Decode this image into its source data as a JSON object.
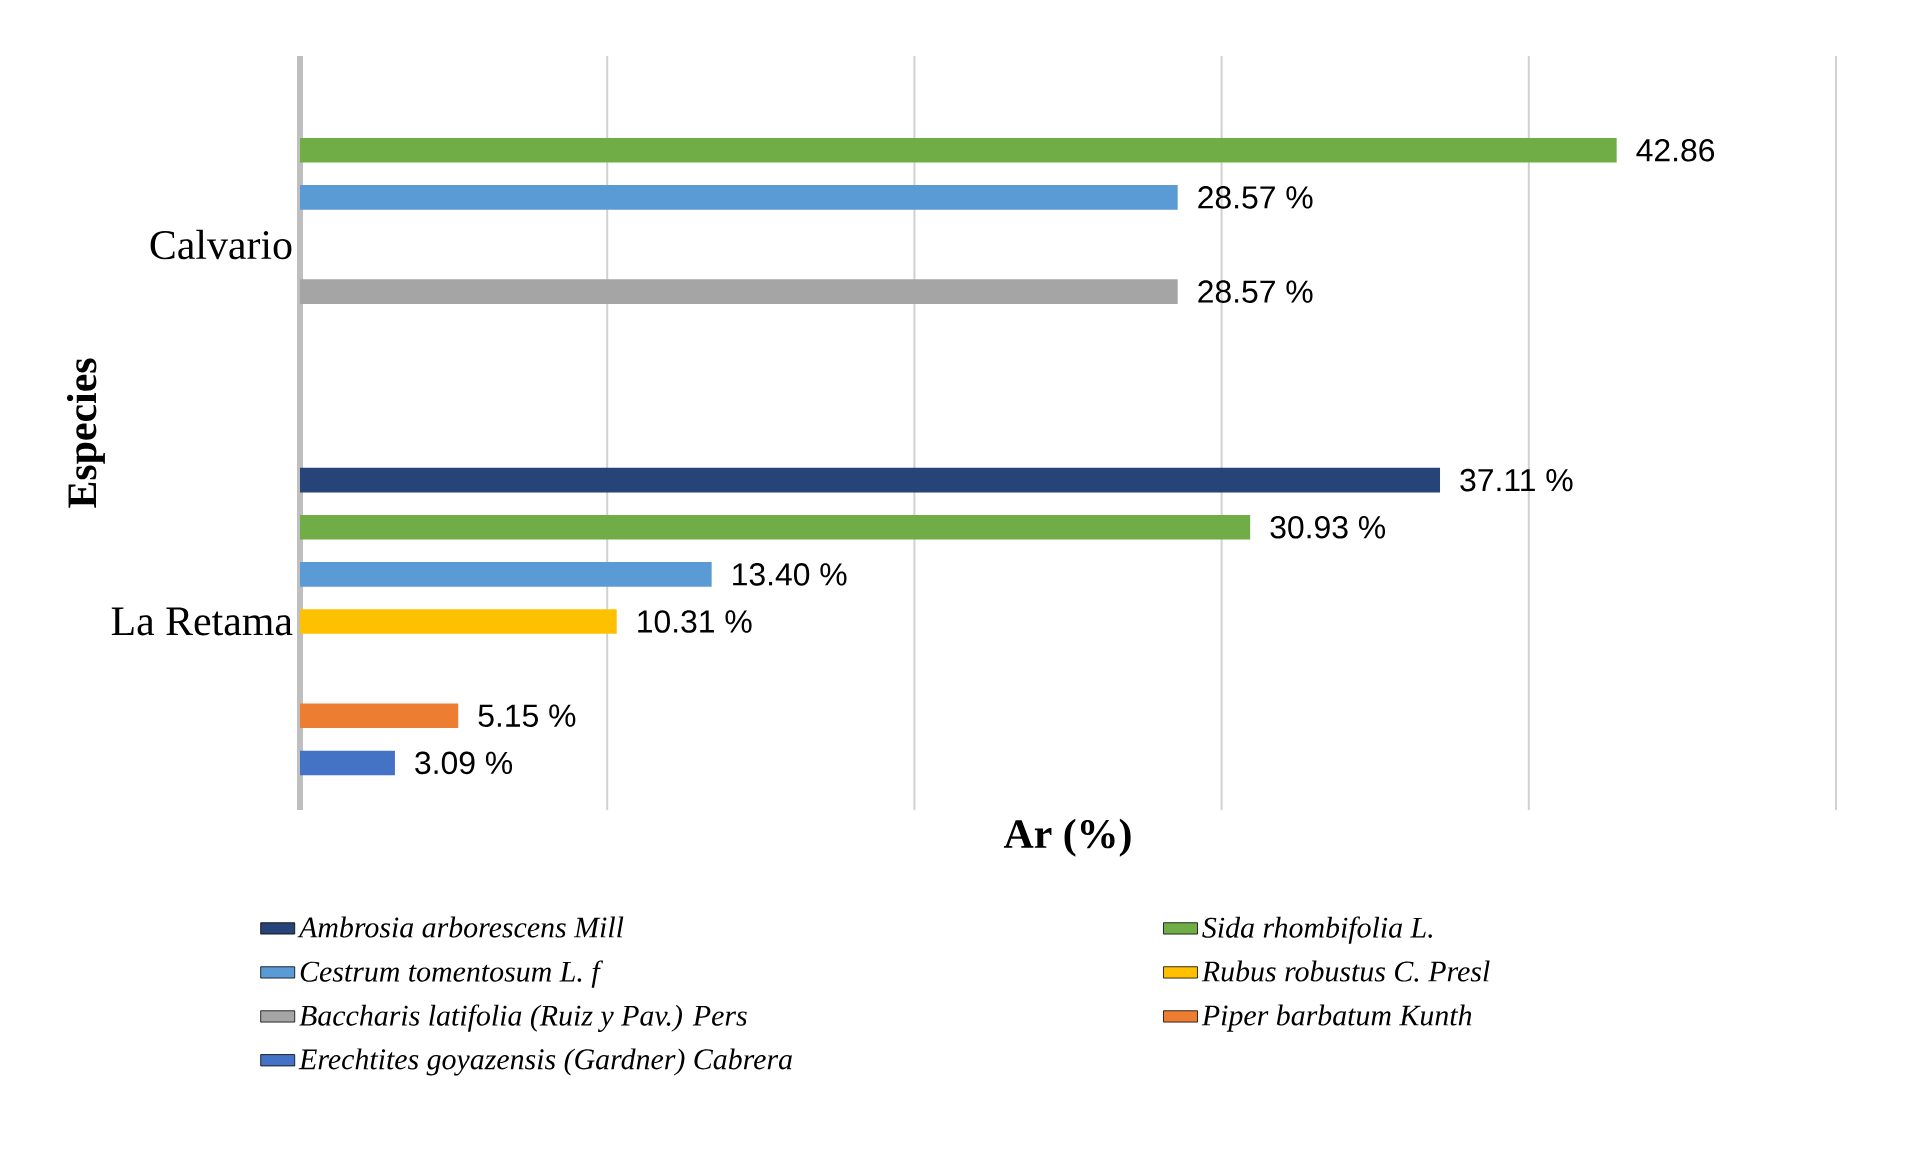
{
  "chart_data": {
    "type": "bar",
    "orientation": "horizontal",
    "ylabel": "Especies",
    "xlabel": "Ar (%)",
    "categories": [
      "Calvario",
      "La Retama"
    ],
    "series": [
      {
        "name": "Ambrosia arborescens Mill",
        "color": "#264478",
        "values": [
          null,
          37.11
        ],
        "value_labels": [
          null,
          "37.11 %"
        ]
      },
      {
        "name": "Sida rhombifolia L.",
        "color": "#70ad47",
        "values": [
          42.86,
          30.93
        ],
        "value_labels": [
          "42.86",
          "30.93  %"
        ]
      },
      {
        "name": "Cestrum tomentosum L. f",
        "color": "#5b9bd5",
        "values": [
          28.57,
          13.4
        ],
        "value_labels": [
          "28.57 %",
          "13.40 %"
        ]
      },
      {
        "name": "Rubus robustus C. Presl",
        "color": "#ffc000",
        "values": [
          null,
          10.31
        ],
        "value_labels": [
          null,
          "10.31 %"
        ]
      },
      {
        "name": "Baccharis latifolia (Ruiz y Pav.) Pers",
        "color": "#a5a5a5",
        "values": [
          28.57,
          null
        ],
        "value_labels": [
          "28.57 %",
          null
        ]
      },
      {
        "name": "Piper barbatum Kunth",
        "color": "#ed7d31",
        "values": [
          null,
          5.15
        ],
        "value_labels": [
          null,
          "5.15 %"
        ]
      },
      {
        "name": "Erechtites goyazensis (Gardner) Cabrera",
        "color": "#4472c4",
        "values": [
          null,
          3.09
        ],
        "value_labels": [
          null,
          "3.09 %"
        ]
      }
    ],
    "xlim": [
      0,
      50
    ],
    "xticks": [
      {
        "value": 0,
        "label": null
      },
      {
        "value": 10,
        "label": null
      },
      {
        "value": 20,
        "label": null
      },
      {
        "value": 30,
        "label": null
      },
      {
        "value": 40,
        "label": null
      },
      {
        "value": 50,
        "label": null
      }
    ],
    "grid": "x",
    "legend": "bottom",
    "tick_labels": "y"
  }
}
